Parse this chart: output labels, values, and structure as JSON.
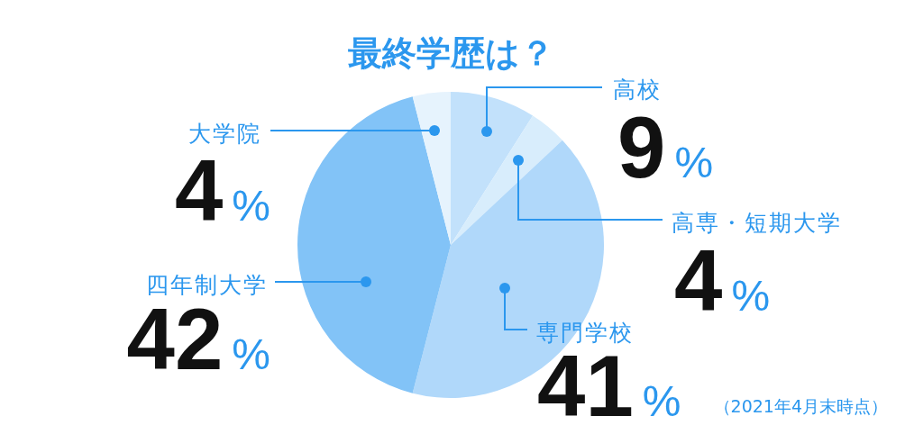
{
  "chart_data": {
    "type": "pie",
    "title": "最終学歴は？",
    "categories": [
      "高校",
      "高専・短期大学",
      "専門学校",
      "四年制大学",
      "大学院"
    ],
    "values": [
      9,
      4,
      41,
      42,
      4
    ],
    "value_labels": [
      "9%",
      "4%",
      "41%",
      "42%",
      "4%"
    ],
    "colors": [
      "#c2e1fb",
      "#d8edfc",
      "#b0d8fa",
      "#82c3f7",
      "#e6f3fd"
    ],
    "annotations": [
      "（2021年4月末時点）"
    ]
  }
}
